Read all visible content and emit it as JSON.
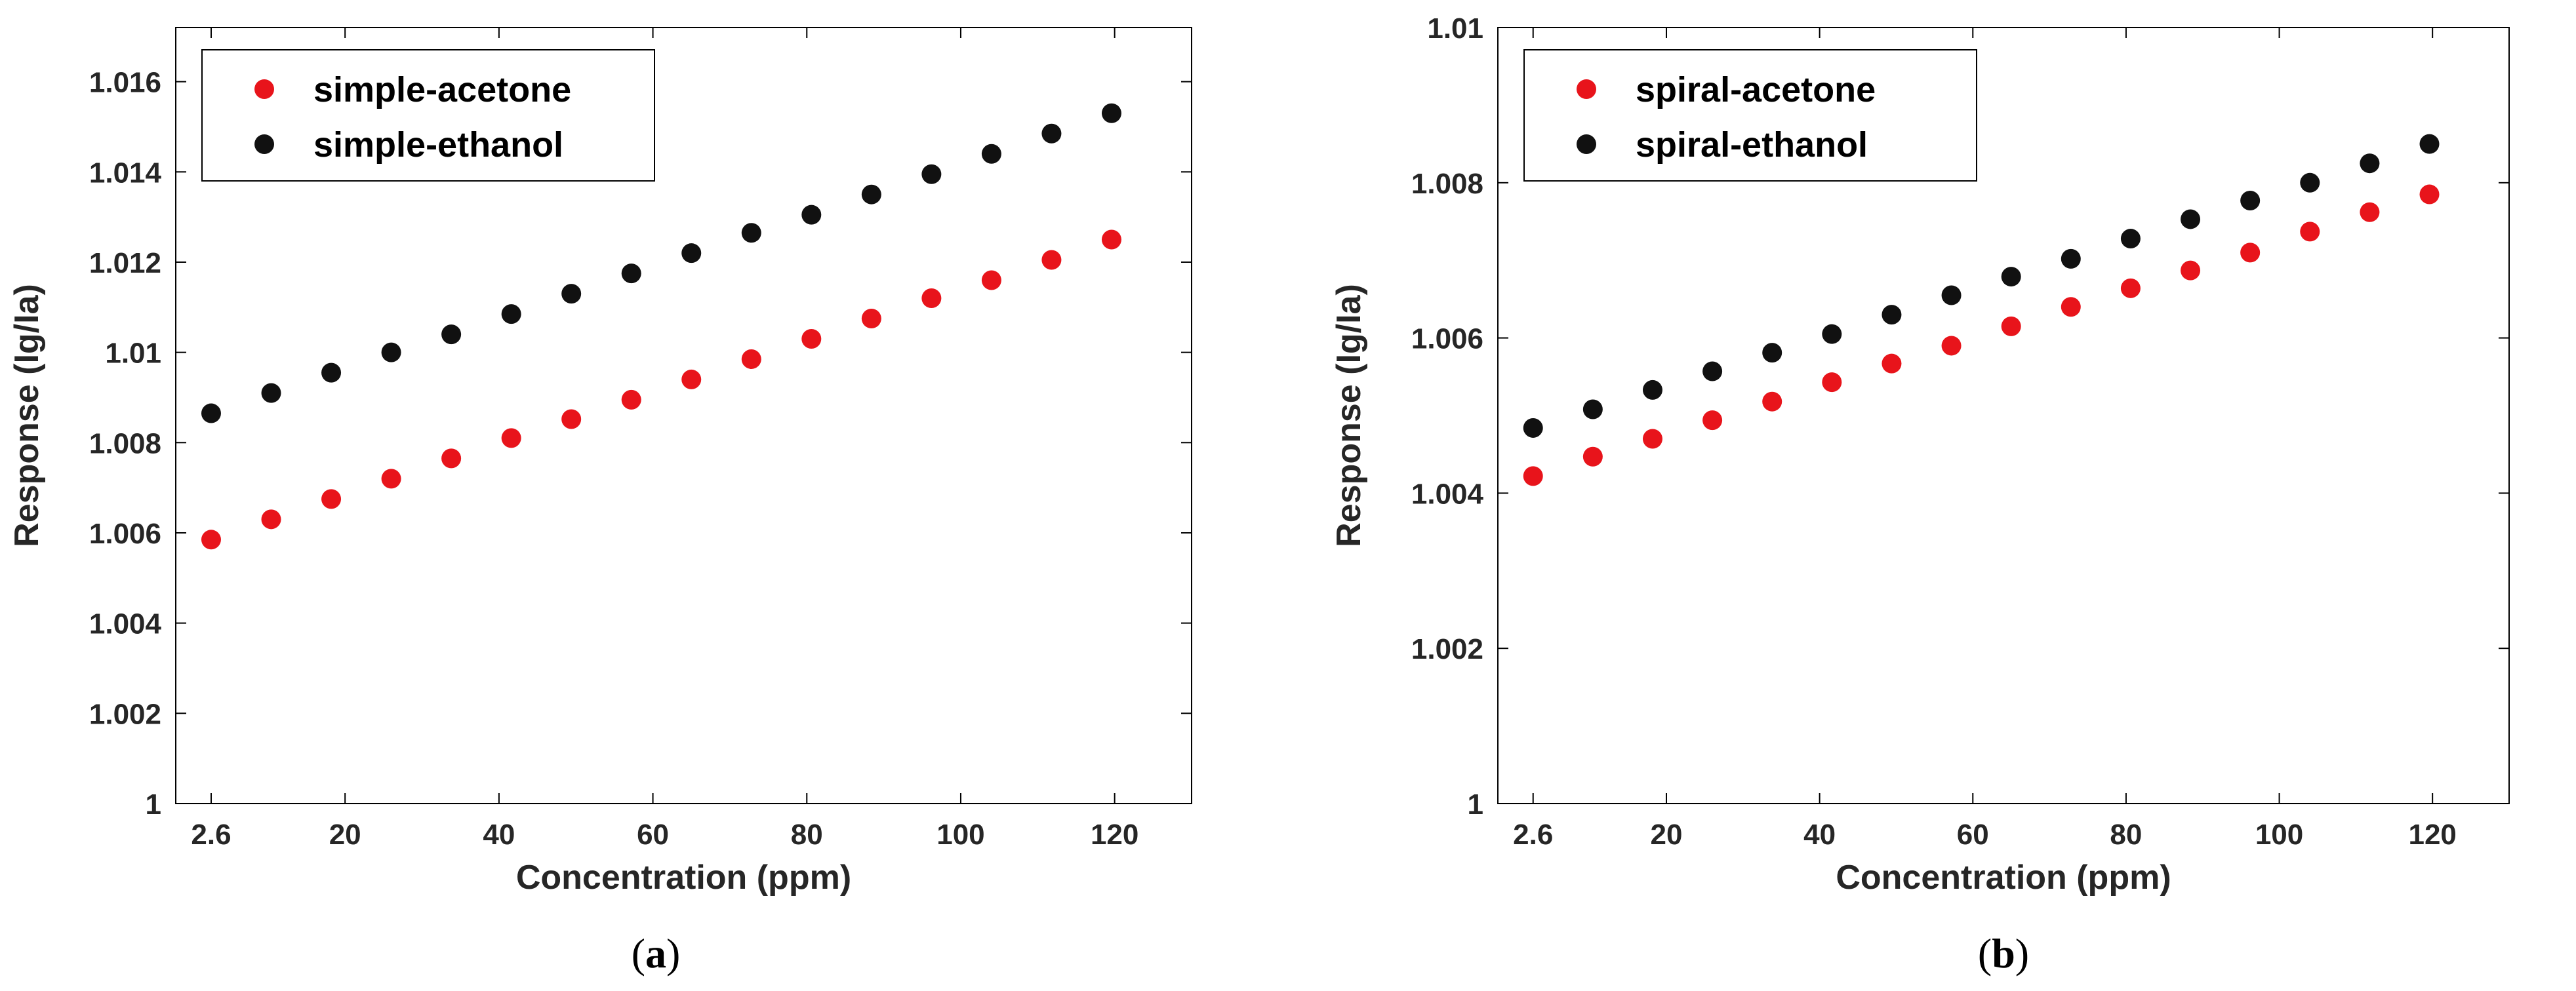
{
  "chart_data": [
    {
      "type": "scatter",
      "panel_label": "a",
      "xlabel": "Concentration (ppm)",
      "ylabel": "Response (Ig/Ia)",
      "xlim": [
        -2,
        130
      ],
      "ylim": [
        1,
        1.0172
      ],
      "xticks": [
        2.6,
        20,
        40,
        60,
        80,
        100,
        120
      ],
      "xtick_labels": [
        "2.6",
        "20",
        "40",
        "60",
        "80",
        "100",
        "120"
      ],
      "yticks": [
        1,
        1.002,
        1.004,
        1.006,
        1.008,
        1.01,
        1.012,
        1.014,
        1.016
      ],
      "ytick_labels": [
        "1",
        "1.002",
        "1.004",
        "1.006",
        "1.008",
        "1.01",
        "1.012",
        "1.014",
        "1.016"
      ],
      "legend_position": "top-left",
      "x": [
        2.6,
        10.4,
        18.2,
        26.0,
        33.8,
        41.6,
        49.4,
        57.2,
        65.0,
        72.8,
        80.6,
        88.4,
        96.2,
        104.0,
        111.8,
        119.6
      ],
      "series": [
        {
          "name": "simple-acetone",
          "color": "#e8141b",
          "values": [
            1.00585,
            1.0063,
            1.00675,
            1.0072,
            1.00765,
            1.0081,
            1.00852,
            1.00895,
            1.0094,
            1.00985,
            1.0103,
            1.01075,
            1.0112,
            1.0116,
            1.01205,
            1.0125
          ]
        },
        {
          "name": "simple-ethanol",
          "color": "#111111",
          "values": [
            1.00865,
            1.0091,
            1.00955,
            1.01,
            1.0104,
            1.01085,
            1.0113,
            1.01175,
            1.0122,
            1.01265,
            1.01305,
            1.0135,
            1.01395,
            1.0144,
            1.01485,
            1.0153
          ]
        }
      ]
    },
    {
      "type": "scatter",
      "panel_label": "b",
      "xlabel": "Concentration (ppm)",
      "ylabel": "Response (Ig/Ia)",
      "xlim": [
        -2,
        130
      ],
      "ylim": [
        1,
        1.01
      ],
      "xticks": [
        2.6,
        20,
        40,
        60,
        80,
        100,
        120
      ],
      "xtick_labels": [
        "2.6",
        "20",
        "40",
        "60",
        "80",
        "100",
        "120"
      ],
      "yticks": [
        1,
        1.002,
        1.004,
        1.006,
        1.008,
        1.01
      ],
      "ytick_labels": [
        "1",
        "1.002",
        "1.004",
        "1.006",
        "1.008",
        "1.01"
      ],
      "legend_position": "top-left",
      "x": [
        2.6,
        10.4,
        18.2,
        26.0,
        33.8,
        41.6,
        49.4,
        57.2,
        65.0,
        72.8,
        80.6,
        88.4,
        96.2,
        104.0,
        111.8,
        119.6
      ],
      "series": [
        {
          "name": "spiral-acetone",
          "color": "#e8141b",
          "values": [
            1.00422,
            1.00447,
            1.0047,
            1.00494,
            1.00518,
            1.00543,
            1.00567,
            1.0059,
            1.00615,
            1.0064,
            1.00664,
            1.00687,
            1.0071,
            1.00737,
            1.00762,
            1.00785
          ]
        },
        {
          "name": "spiral-ethanol",
          "color": "#111111",
          "values": [
            1.00484,
            1.00508,
            1.00533,
            1.00557,
            1.00581,
            1.00605,
            1.0063,
            1.00655,
            1.00679,
            1.00702,
            1.00728,
            1.00753,
            1.00777,
            1.008,
            1.00825,
            1.0085
          ]
        }
      ]
    }
  ]
}
